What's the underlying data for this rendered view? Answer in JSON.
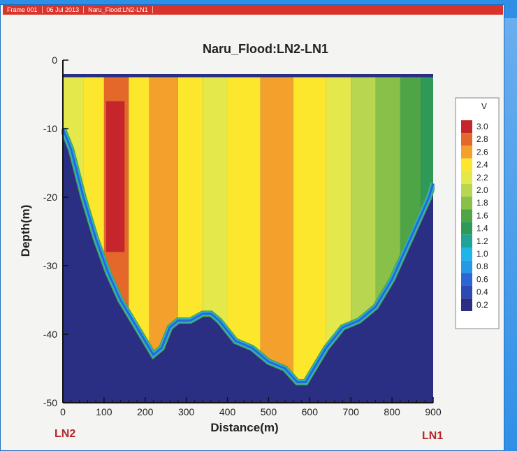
{
  "header": {
    "frame_label": "Frame 001",
    "date_label": "06 Jul 2013",
    "dataset_label": "Naru_Flood:LN2-LN1"
  },
  "colors": {
    "background_blue": "#2f8fe6",
    "header_red": "#d8342c",
    "station_label_red": "#b3262a",
    "seabed_navy": "#2b2f83"
  },
  "chart_data": {
    "type": "heatmap",
    "title": "Naru_Flood:LN2-LN1",
    "xlabel": "Distance(m)",
    "ylabel": "Depth(m)",
    "xlim": [
      0,
      900
    ],
    "ylim": [
      -50,
      0
    ],
    "xticks": [
      0,
      100,
      200,
      300,
      400,
      500,
      600,
      700,
      800,
      900
    ],
    "yticks": [
      0,
      -10,
      -20,
      -30,
      -40,
      -50
    ],
    "legend": {
      "title": "V",
      "position": "right",
      "levels": [
        {
          "value": "3.0",
          "color": "#c4262b"
        },
        {
          "value": "2.8",
          "color": "#e5682b"
        },
        {
          "value": "2.6",
          "color": "#f3a12c"
        },
        {
          "value": "2.4",
          "color": "#fde72c"
        },
        {
          "value": "2.2",
          "color": "#e4e84a"
        },
        {
          "value": "2.0",
          "color": "#b9d650"
        },
        {
          "value": "1.8",
          "color": "#88c04a"
        },
        {
          "value": "1.6",
          "color": "#4fa545"
        },
        {
          "value": "1.4",
          "color": "#2f9a58"
        },
        {
          "value": "1.2",
          "color": "#22a39a"
        },
        {
          "value": "1.0",
          "color": "#1eb6e6"
        },
        {
          "value": "0.8",
          "color": "#249ae6"
        },
        {
          "value": "0.6",
          "color": "#2c66d2"
        },
        {
          "value": "0.4",
          "color": "#2d49b2"
        },
        {
          "value": "0.2",
          "color": "#2b2f83"
        }
      ]
    },
    "station_labels": {
      "left": "LN2",
      "right": "LN1"
    },
    "bottom_profile": [
      {
        "x": 0,
        "depth": -10
      },
      {
        "x": 20,
        "depth": -13
      },
      {
        "x": 50,
        "depth": -20
      },
      {
        "x": 80,
        "depth": -26
      },
      {
        "x": 110,
        "depth": -31
      },
      {
        "x": 140,
        "depth": -35
      },
      {
        "x": 170,
        "depth": -38
      },
      {
        "x": 200,
        "depth": -41
      },
      {
        "x": 220,
        "depth": -43
      },
      {
        "x": 240,
        "depth": -42
      },
      {
        "x": 260,
        "depth": -39
      },
      {
        "x": 280,
        "depth": -38
      },
      {
        "x": 310,
        "depth": -38
      },
      {
        "x": 340,
        "depth": -37
      },
      {
        "x": 360,
        "depth": -37
      },
      {
        "x": 380,
        "depth": -38
      },
      {
        "x": 420,
        "depth": -41
      },
      {
        "x": 460,
        "depth": -42
      },
      {
        "x": 500,
        "depth": -44
      },
      {
        "x": 540,
        "depth": -45
      },
      {
        "x": 570,
        "depth": -47
      },
      {
        "x": 590,
        "depth": -47
      },
      {
        "x": 610,
        "depth": -45
      },
      {
        "x": 640,
        "depth": -42
      },
      {
        "x": 680,
        "depth": -39
      },
      {
        "x": 720,
        "depth": -38
      },
      {
        "x": 760,
        "depth": -36
      },
      {
        "x": 800,
        "depth": -32
      },
      {
        "x": 830,
        "depth": -28
      },
      {
        "x": 860,
        "depth": -24
      },
      {
        "x": 890,
        "depth": -20
      },
      {
        "x": 900,
        "depth": -18
      }
    ],
    "velocity_bands": [
      {
        "x0": 0,
        "x1": 50,
        "v": "2.2"
      },
      {
        "x0": 50,
        "x1": 100,
        "v": "2.4"
      },
      {
        "x0": 100,
        "x1": 160,
        "v": "2.8"
      },
      {
        "x0": 160,
        "x1": 210,
        "v": "2.4"
      },
      {
        "x0": 210,
        "x1": 280,
        "v": "2.6"
      },
      {
        "x0": 280,
        "x1": 340,
        "v": "2.4"
      },
      {
        "x0": 340,
        "x1": 400,
        "v": "2.2"
      },
      {
        "x0": 400,
        "x1": 480,
        "v": "2.4"
      },
      {
        "x0": 480,
        "x1": 560,
        "v": "2.6"
      },
      {
        "x0": 560,
        "x1": 640,
        "v": "2.4"
      },
      {
        "x0": 640,
        "x1": 700,
        "v": "2.2"
      },
      {
        "x0": 700,
        "x1": 760,
        "v": "2.0"
      },
      {
        "x0": 760,
        "x1": 820,
        "v": "1.8"
      },
      {
        "x0": 820,
        "x1": 870,
        "v": "1.6"
      },
      {
        "x0": 870,
        "x1": 900,
        "v": "1.4"
      }
    ],
    "core_patch": {
      "x0": 105,
      "x1": 150,
      "top": -6,
      "bottom": -28,
      "v": "3.0"
    }
  }
}
